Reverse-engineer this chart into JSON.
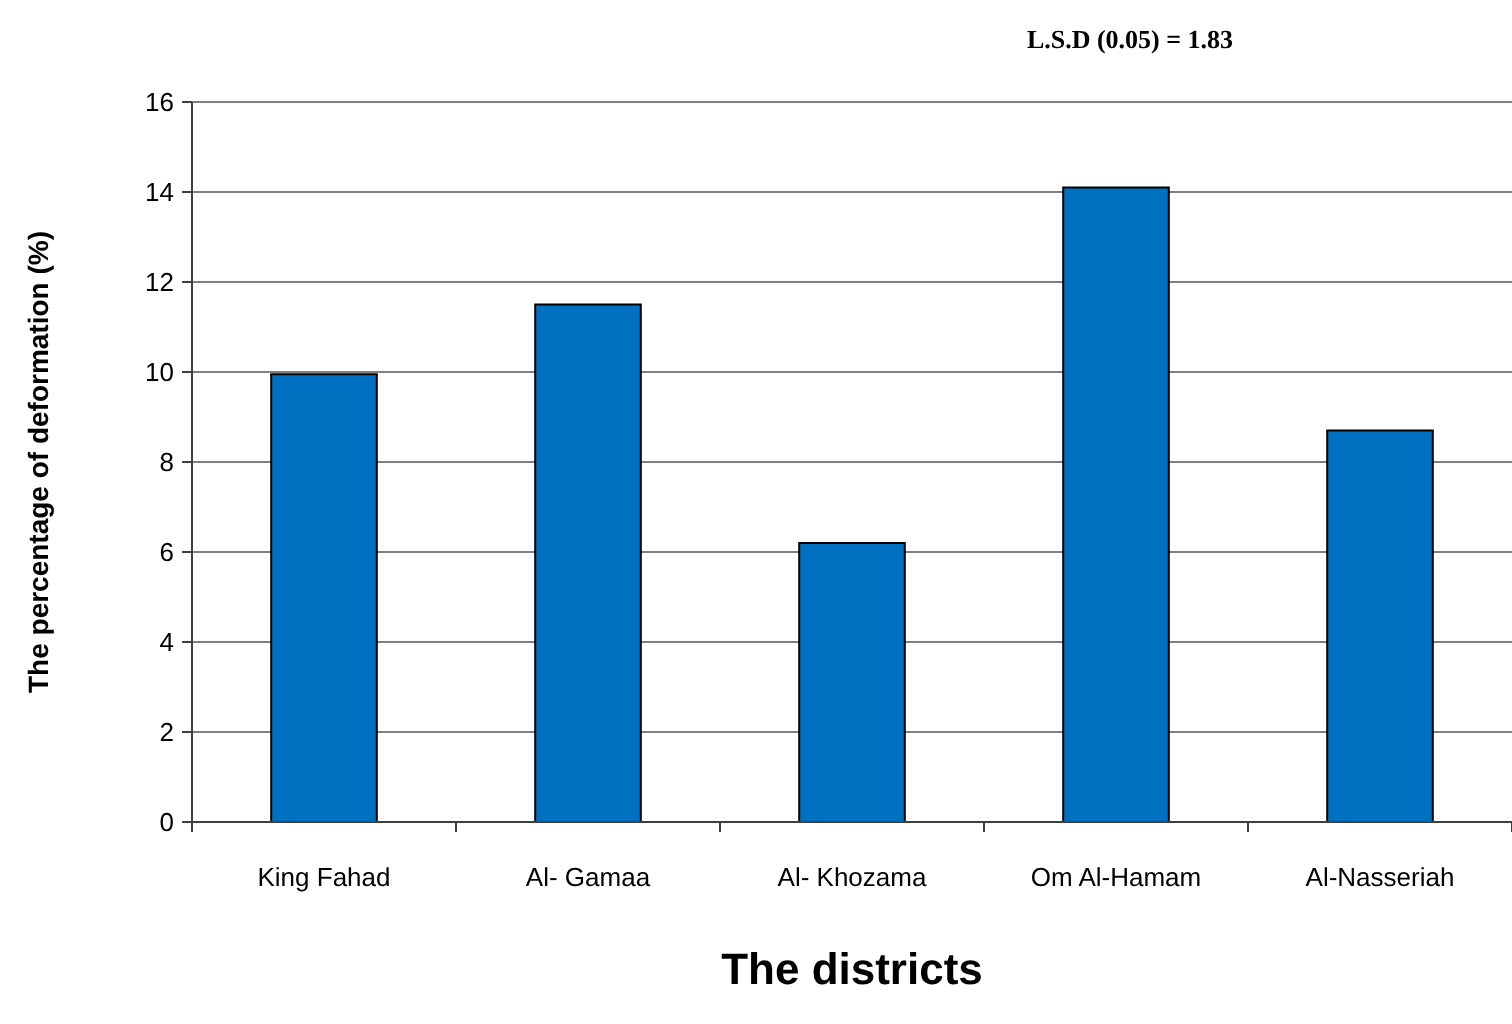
{
  "chart_data": {
    "type": "bar",
    "xlabel": "The districts",
    "ylabel": "The percentage of deformation (%)",
    "annotations": [
      "L.S.D (0.05) = 1.83"
    ],
    "categories": [
      "King Fahad",
      "Al- Gamaa",
      "Al- Khozama",
      "Om Al-Hamam",
      "Al-Nasseriah"
    ],
    "values": [
      9.95,
      11.5,
      6.2,
      14.1,
      8.7
    ],
    "color": "#0070c0",
    "ylim": [
      0,
      16
    ],
    "yticks": [
      0,
      2,
      4,
      6,
      8,
      10,
      12,
      14,
      16
    ],
    "grid": "y"
  }
}
